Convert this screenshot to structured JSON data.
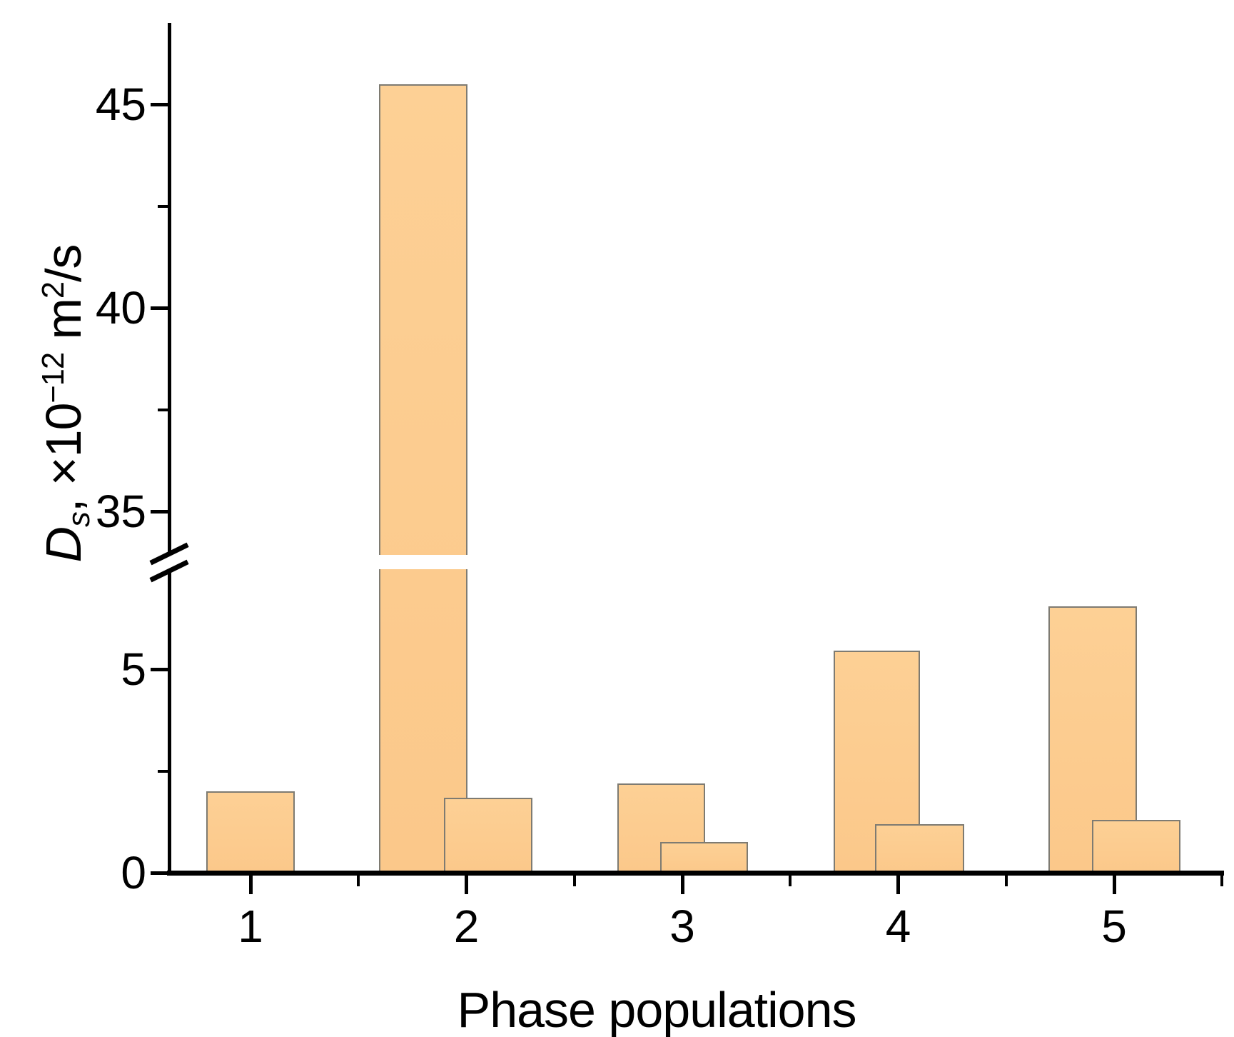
{
  "figure": {
    "background": "#ffffff",
    "bar_fill": "#FCCA8C",
    "bar_stroke": "#7E7B72",
    "axis_color": "#000000"
  },
  "chart_data": {
    "type": "bar",
    "title": "",
    "xlabel": "Phase populations",
    "ylabel": "Ds, ×10−12 m2/s",
    "ylabel_parts": {
      "d": "D",
      "d_sub": "s",
      "mid": ", ×10",
      "exp": "−12",
      "unit": " m",
      "unit_exp": "2",
      "unit_end": "/s"
    },
    "categories": [
      "1",
      "2",
      "3",
      "4",
      "5"
    ],
    "x_tick_labels": [
      "1",
      "2",
      "3",
      "4",
      "5"
    ],
    "series": [
      {
        "name": "primary",
        "values": [
          2.0,
          45.5,
          2.2,
          5.45,
          6.55
        ]
      },
      {
        "name": "secondary",
        "values": [
          null,
          1.85,
          0.75,
          1.2,
          1.3
        ]
      }
    ],
    "axis_break": {
      "from": 7.8,
      "to": 33.6
    },
    "y_major_ticks": [
      0,
      5,
      35,
      40,
      45
    ],
    "y_major_tick_labels": [
      "0",
      "5",
      "35",
      "40",
      "45"
    ],
    "y_minor_ticks": [
      2.5,
      37.5,
      42.5
    ],
    "x_minor_ticks": [
      1.5,
      2.5,
      3.5,
      4.5,
      5.5
    ],
    "ylim_lower_segment": [
      0,
      7.8
    ],
    "ylim_upper_segment": [
      33.6,
      47
    ],
    "grid": false,
    "legend": "none"
  }
}
